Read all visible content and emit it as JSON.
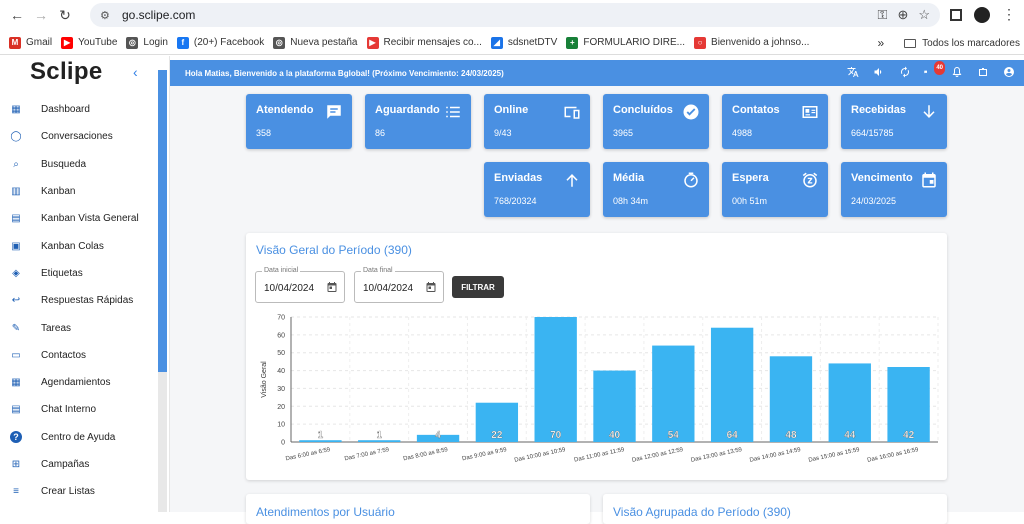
{
  "browser": {
    "url": "go.sclipe.com",
    "bookmarks": [
      {
        "label": "Gmail",
        "color": "#d93025",
        "glyph": "M"
      },
      {
        "label": "YouTube",
        "color": "#ff0000",
        "glyph": "▶"
      },
      {
        "label": "Login",
        "color": "#555555",
        "glyph": "◎"
      },
      {
        "label": "(20+) Facebook",
        "color": "#1877f2",
        "glyph": "f"
      },
      {
        "label": "Nueva pestaña",
        "color": "#555555",
        "glyph": "◎"
      },
      {
        "label": "Recibir mensajes co...",
        "color": "#e53935",
        "glyph": "▶"
      },
      {
        "label": "sdsnetDTV",
        "color": "#1a73e8",
        "glyph": "◢"
      },
      {
        "label": "FORMULARIO DIRE...",
        "color": "#188038",
        "glyph": "+"
      },
      {
        "label": "Bienvenido a johnso...",
        "color": "#e53935",
        "glyph": "○"
      }
    ],
    "all_bookmarks": "Todos los marcadores"
  },
  "sidebar": {
    "logo": "Sclipe",
    "items": [
      {
        "label": "Dashboard",
        "icon": "dashboard-icon"
      },
      {
        "label": "Conversaciones",
        "icon": "whatsapp-icon"
      },
      {
        "label": "Busqueda",
        "icon": "search-icon"
      },
      {
        "label": "Kanban",
        "icon": "kanban-icon"
      },
      {
        "label": "Kanban Vista General",
        "icon": "kanban-general-icon"
      },
      {
        "label": "Kanban Colas",
        "icon": "kanban-queue-icon"
      },
      {
        "label": "Etiquetas",
        "icon": "tag-icon"
      },
      {
        "label": "Respuestas Rápidas",
        "icon": "reply-all-icon"
      },
      {
        "label": "Tareas",
        "icon": "pencil-icon"
      },
      {
        "label": "Contactos",
        "icon": "contact-card-icon"
      },
      {
        "label": "Agendamientos",
        "icon": "calendar-icon"
      },
      {
        "label": "Chat Interno",
        "icon": "chat-icon"
      },
      {
        "label": "Centro de Ayuda",
        "icon": "help-icon"
      },
      {
        "label": "Campañas",
        "icon": "add-box-icon"
      },
      {
        "label": "Crear Listas",
        "icon": "playlist-icon"
      }
    ]
  },
  "topbar": {
    "greeting": "Hola Matias, Bienvenido a la plataforma Bglobal! (Próximo Vencimiento: 24/03/2025)",
    "notification_count": "40"
  },
  "cards": [
    {
      "title": "Atendendo",
      "value": "358",
      "icon": "chat-lines-icon"
    },
    {
      "title": "Aguardando",
      "value": "86",
      "icon": "list-icon"
    },
    {
      "title": "Online",
      "value": "9/43",
      "icon": "devices-icon"
    },
    {
      "title": "Concluídos",
      "value": "3965",
      "icon": "check-circle-icon"
    },
    {
      "title": "Contatos",
      "value": "4988",
      "icon": "contact-card-icon"
    },
    {
      "title": "Recebidas",
      "value": "664/15785",
      "icon": "arrow-down-icon"
    },
    {
      "title": "Enviadas",
      "value": "768/20324",
      "icon": "arrow-up-icon"
    },
    {
      "title": "Média",
      "value": "08h 34m",
      "icon": "timer-icon"
    },
    {
      "title": "Espera",
      "value": "00h 51m",
      "icon": "alarm-icon"
    },
    {
      "title": "Vencimento",
      "value": "24/03/2025",
      "icon": "event-icon"
    }
  ],
  "period_panel": {
    "title": "Visão Geral do Período (390)",
    "start_label": "Data inicial",
    "start_value": "10/04/2024",
    "end_label": "Data final",
    "end_value": "10/04/2024",
    "filter_label": "FILTRAR"
  },
  "chart_data": {
    "type": "bar",
    "ylabel": "Visão Geral",
    "ylim": [
      0,
      70
    ],
    "yticks": [
      0,
      10,
      20,
      30,
      40,
      50,
      60,
      70
    ],
    "categories": [
      "Das 6:00 as 6:59",
      "Das 7:00 as 7:59",
      "Das 8:00 as 8:59",
      "Das 9:00 as 9:59",
      "Das 10:00 as 10:59",
      "Das 11:00 as 11:59",
      "Das 12:00 as 12:59",
      "Das 13:00 as 13:59",
      "Das 14:00 as 14:59",
      "Das 15:00 as 15:59",
      "Das 16:00 as 16:59"
    ],
    "values": [
      1,
      1,
      4,
      22,
      70,
      40,
      54,
      64,
      48,
      44,
      42
    ],
    "bar_color": "#3ab4f2",
    "grid": true
  },
  "bottom_panels": [
    {
      "title": "Atendimentos por Usuário"
    },
    {
      "title": "Visão Agrupada do Período (390)"
    }
  ]
}
